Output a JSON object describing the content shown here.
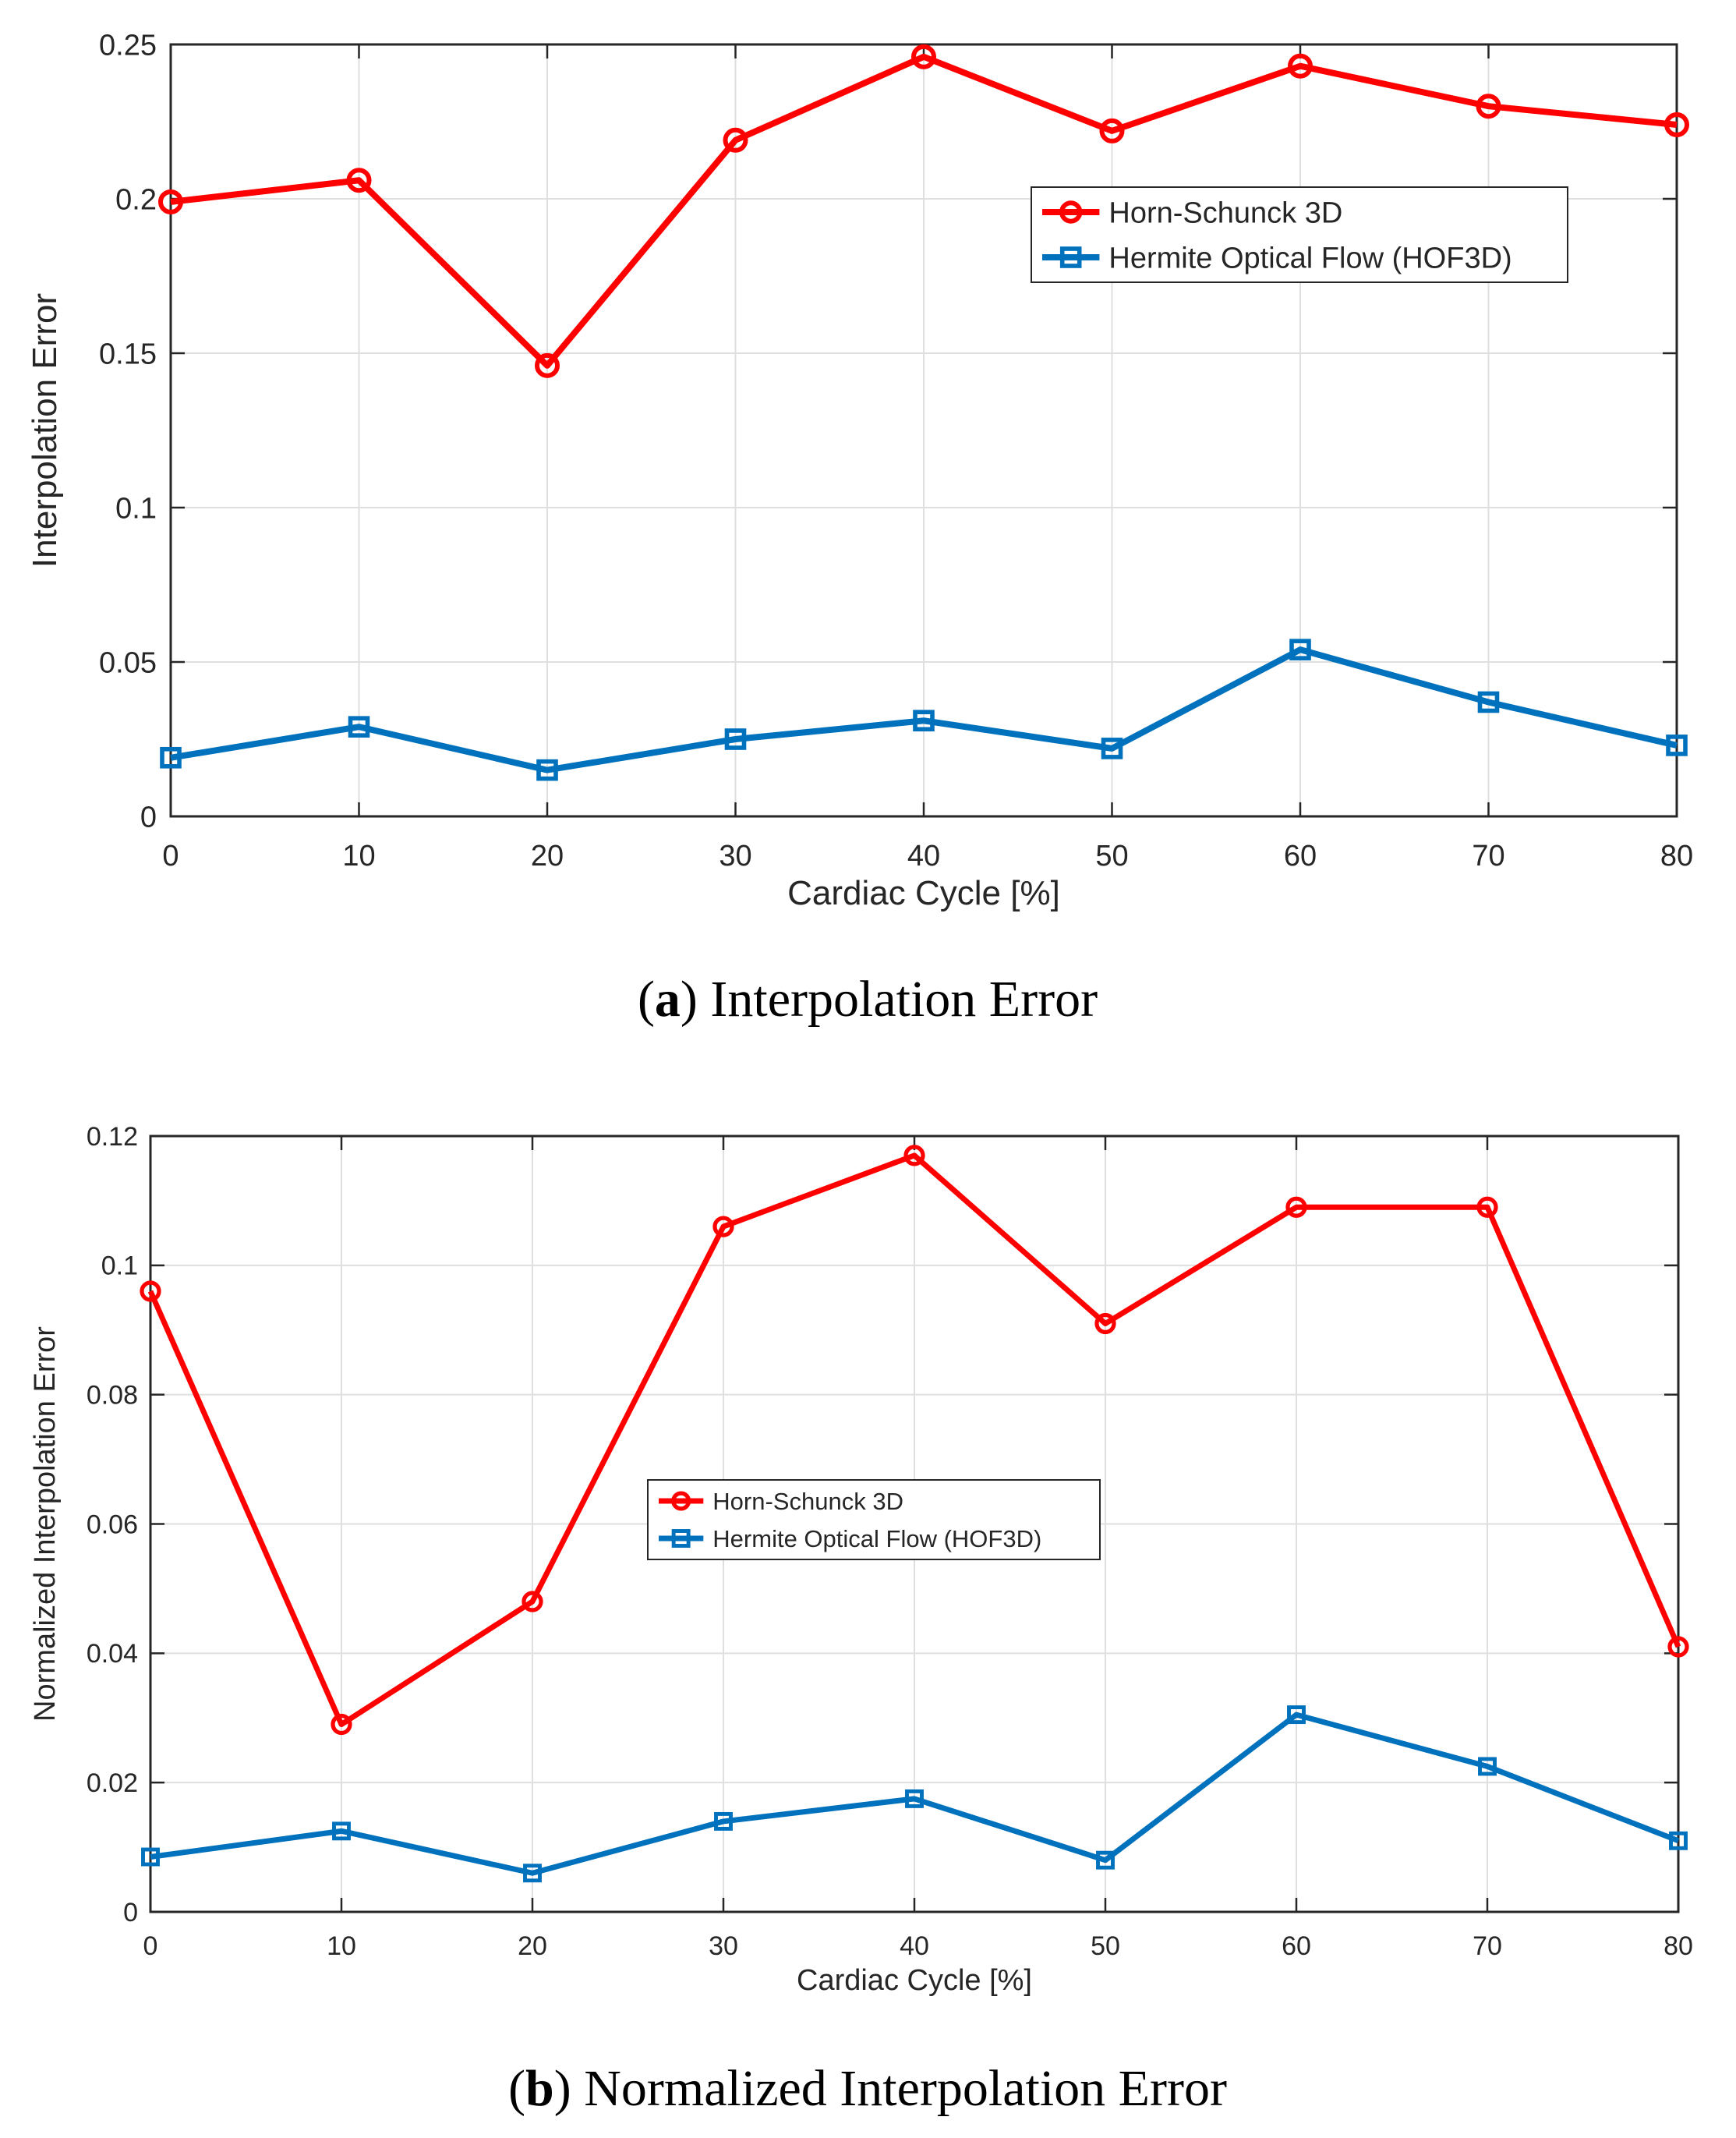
{
  "chart_data": [
    {
      "type": "line",
      "panel": "a",
      "caption_letter": "a",
      "caption_text": "Interpolation Error",
      "xlabel": "Cardiac Cycle [%]",
      "ylabel": "Interpolation Error",
      "xlim": [
        0,
        80
      ],
      "ylim": [
        0,
        0.25
      ],
      "x": [
        0,
        10,
        20,
        30,
        40,
        50,
        60,
        70,
        80
      ],
      "xticks": [
        "0",
        "10",
        "20",
        "30",
        "40",
        "50",
        "60",
        "70",
        "80"
      ],
      "yticks": [
        0,
        0.05,
        0.1,
        0.15,
        0.2,
        0.25
      ],
      "ytick_labels": [
        "0",
        "0.05",
        "0.1",
        "0.15",
        "0.2",
        "0.25"
      ],
      "grid": true,
      "legend_position": "upper-right",
      "series": [
        {
          "name": "Horn-Schunck 3D",
          "color": "#ff0000",
          "marker": "circle",
          "values": [
            0.199,
            0.206,
            0.146,
            0.219,
            0.246,
            0.222,
            0.243,
            0.23,
            0.224
          ]
        },
        {
          "name": "Hermite Optical Flow (HOF3D)",
          "color": "#0072bd",
          "marker": "square",
          "values": [
            0.019,
            0.029,
            0.015,
            0.025,
            0.031,
            0.022,
            0.054,
            0.037,
            0.023
          ]
        }
      ]
    },
    {
      "type": "line",
      "panel": "b",
      "caption_letter": "b",
      "caption_text": "Normalized Interpolation Error",
      "xlabel": "Cardiac Cycle [%]",
      "ylabel": "Normalized Interpolation Error",
      "xlim": [
        0,
        80
      ],
      "ylim": [
        0,
        0.12
      ],
      "x": [
        0,
        10,
        20,
        30,
        40,
        50,
        60,
        70,
        80
      ],
      "xticks": [
        "0",
        "10",
        "20",
        "30",
        "40",
        "50",
        "60",
        "70",
        "80"
      ],
      "yticks": [
        0,
        0.02,
        0.04,
        0.06,
        0.08,
        0.1,
        0.12
      ],
      "ytick_labels": [
        "0",
        "0.02",
        "0.04",
        "0.06",
        "0.08",
        "0.1",
        "0.12"
      ],
      "grid": true,
      "legend_position": "center-left",
      "series": [
        {
          "name": "Horn-Schunck 3D",
          "color": "#ff0000",
          "marker": "circle",
          "values": [
            0.096,
            0.029,
            0.048,
            0.106,
            0.117,
            0.091,
            0.109,
            0.109,
            0.041
          ]
        },
        {
          "name": "Hermite Optical Flow (HOF3D)",
          "color": "#0072bd",
          "marker": "square",
          "values": [
            0.0085,
            0.0125,
            0.006,
            0.014,
            0.0175,
            0.008,
            0.0305,
            0.0225,
            0.011
          ]
        }
      ]
    }
  ]
}
